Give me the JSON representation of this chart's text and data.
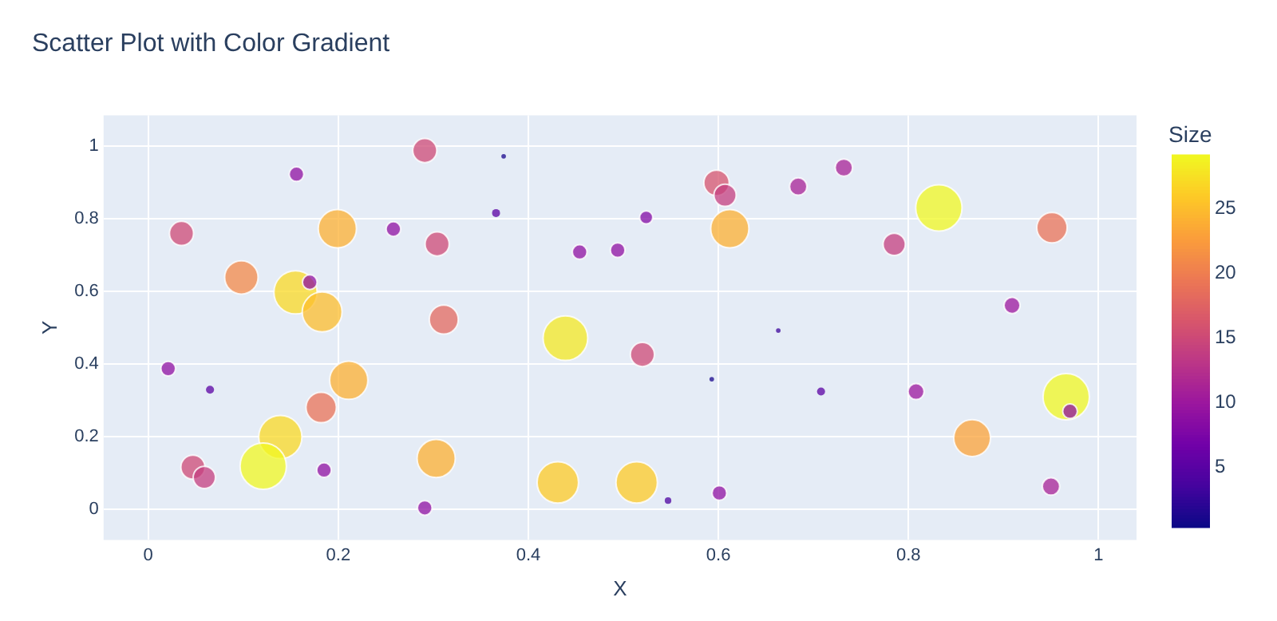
{
  "chart_data": {
    "type": "bubble",
    "title": "Scatter Plot with Color Gradient",
    "xlabel": "X",
    "ylabel": "Y",
    "clabel": "Size",
    "xlim": [
      -0.047,
      1.04
    ],
    "ylim": [
      -0.084,
      1.084
    ],
    "xticks": [
      0,
      {
        "value": 0.2,
        "label": "0.2"
      },
      {
        "value": 0.4,
        "label": "0.4"
      },
      {
        "value": 0.6,
        "label": "0.6"
      },
      {
        "value": 0.8,
        "label": "0.8"
      },
      1
    ],
    "yticks": [
      0,
      {
        "value": 0.2,
        "label": "0.2"
      },
      {
        "value": 0.4,
        "label": "0.4"
      },
      {
        "value": 0.6,
        "label": "0.6"
      },
      {
        "value": 0.8,
        "label": "0.8"
      },
      1
    ],
    "clim": [
      0.4,
      29.1
    ],
    "cticks": [
      5,
      10,
      15,
      20,
      25
    ],
    "grid": true,
    "legend": false,
    "marker": "circle",
    "x": [
      0.291,
      0.374,
      0.156,
      0.366,
      0.035,
      0.199,
      0.258,
      0.304,
      0.454,
      0.494,
      0.098,
      0.155,
      0.17,
      0.183,
      0.311,
      0.439,
      0.52,
      0.021,
      0.065,
      0.211,
      0.182,
      0.139,
      0.121,
      0.047,
      0.059,
      0.185,
      0.303,
      0.291,
      0.431,
      0.514,
      0.547,
      0.601,
      0.598,
      0.607,
      0.524,
      0.612,
      0.684,
      0.732,
      0.832,
      0.785,
      0.951,
      0.663,
      0.593,
      0.708,
      0.808,
      0.909,
      0.966,
      0.97,
      0.867,
      0.95
    ],
    "values": [
      0.987,
      0.971,
      0.922,
      0.815,
      0.759,
      0.772,
      0.771,
      0.73,
      0.708,
      0.713,
      0.638,
      0.597,
      0.625,
      0.543,
      0.522,
      0.471,
      0.426,
      0.387,
      0.329,
      0.355,
      0.28,
      0.199,
      0.119,
      0.116,
      0.088,
      0.108,
      0.14,
      0.004,
      0.074,
      0.074,
      0.024,
      0.045,
      0.898,
      0.864,
      0.803,
      0.772,
      0.888,
      0.94,
      0.829,
      0.729,
      0.775,
      0.492,
      0.358,
      0.324,
      0.324,
      0.561,
      0.31,
      0.27,
      0.196,
      0.063
    ],
    "cvalues": [
      15,
      1,
      9,
      5,
      15,
      24,
      9,
      15,
      9,
      9,
      21,
      27,
      9,
      25,
      18,
      28,
      15,
      9,
      5,
      24,
      19,
      27,
      29,
      15,
      14,
      9,
      24,
      9,
      26,
      26,
      4,
      9,
      16,
      14,
      8,
      24,
      11,
      11,
      29,
      14,
      19,
      3,
      1,
      5,
      10,
      10,
      29,
      9,
      23,
      11
    ],
    "sizes": [
      0.27,
      0.01,
      0.1,
      0.03,
      0.27,
      0.68,
      0.1,
      0.27,
      0.1,
      0.1,
      0.52,
      0.87,
      0.1,
      0.74,
      0.39,
      0.93,
      0.27,
      0.1,
      0.03,
      0.68,
      0.43,
      0.87,
      1,
      0.27,
      0.23,
      0.1,
      0.68,
      0.1,
      0.8,
      0.8,
      0.02,
      0.1,
      0.3,
      0.23,
      0.08,
      0.68,
      0.14,
      0.14,
      1,
      0.23,
      0.43,
      0.01,
      0.01,
      0.03,
      0.12,
      0.12,
      1,
      0.1,
      0.63,
      0.14
    ]
  }
}
